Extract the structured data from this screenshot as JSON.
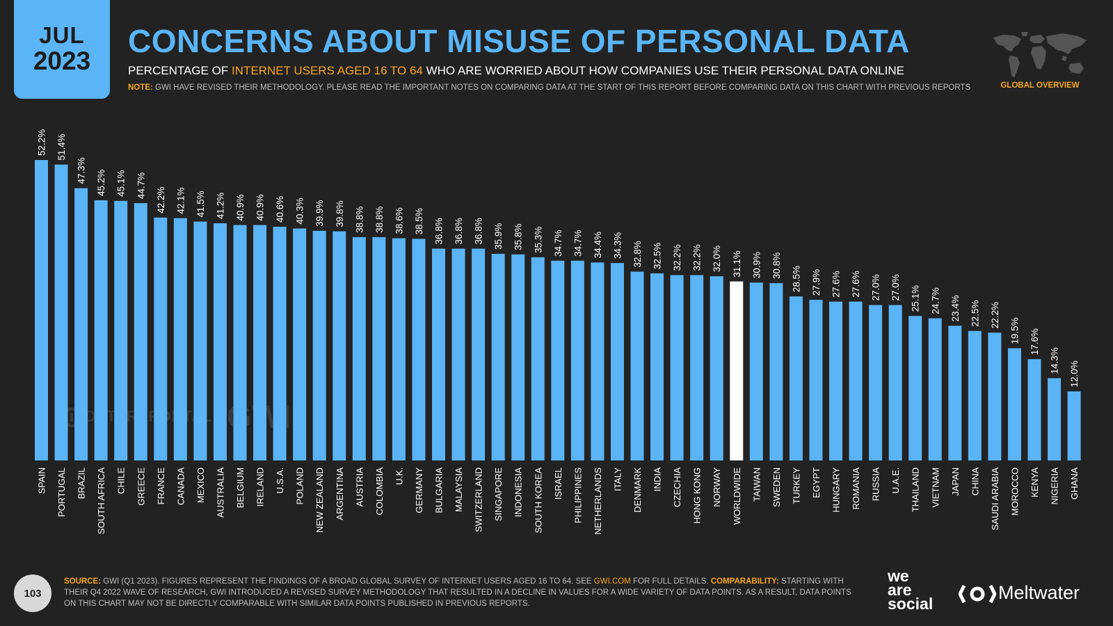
{
  "header": {
    "badge_month": "JUL",
    "badge_year": "2023",
    "title": "CONCERNS ABOUT MISUSE OF PERSONAL DATA",
    "subtitle_pre": "PERCENTAGE OF ",
    "subtitle_highlight": "INTERNET USERS AGED 16 TO 64",
    "subtitle_post": " WHO ARE WORRIED ABOUT HOW COMPANIES USE THEIR PERSONAL DATA ONLINE",
    "note_label": "NOTE:",
    "note_text": " GWI HAVE REVISED THEIR METHODOLOGY. PLEASE READ THE IMPORTANT NOTES ON COMPARING DATA AT THE START OF THIS REPORT BEFORE COMPARING DATA ON THIS CHART WITH PREVIOUS REPORTS",
    "section_label": "GLOBAL OVERVIEW"
  },
  "chart_data": {
    "type": "bar",
    "categories": [
      "SPAIN",
      "PORTUGAL",
      "BRAZIL",
      "SOUTH AFRICA",
      "CHILE",
      "GREECE",
      "FRANCE",
      "CANADA",
      "MEXICO",
      "AUSTRALIA",
      "BELGIUM",
      "IRELAND",
      "U.S.A.",
      "POLAND",
      "NEW ZEALAND",
      "ARGENTINA",
      "AUSTRIA",
      "COLOMBIA",
      "U.K.",
      "GERMANY",
      "BULGARIA",
      "MALAYSIA",
      "SWITZERLAND",
      "SINGAPORE",
      "INDONESIA",
      "SOUTH KOREA",
      "ISRAEL",
      "PHILIPPINES",
      "NETHERLANDS",
      "ITALY",
      "DENMARK",
      "INDIA",
      "CZECHIA",
      "HONG KONG",
      "NORWAY",
      "WORLDWIDE",
      "TAIWAN",
      "SWEDEN",
      "TURKEY",
      "EGYPT",
      "HUNGARY",
      "ROMANIA",
      "RUSSIA",
      "U.A.E.",
      "THAILAND",
      "VIETNAM",
      "JAPAN",
      "CHINA",
      "SAUDI ARABIA",
      "MOROCCO",
      "KENYA",
      "NIGERIA",
      "GHANA"
    ],
    "values": [
      52.2,
      51.4,
      47.3,
      45.2,
      45.1,
      44.7,
      42.2,
      42.1,
      41.5,
      41.2,
      40.9,
      40.9,
      40.6,
      40.3,
      39.9,
      39.8,
      38.8,
      38.8,
      38.6,
      38.5,
      36.8,
      36.8,
      36.8,
      35.9,
      35.8,
      35.3,
      34.7,
      34.7,
      34.4,
      34.3,
      32.8,
      32.5,
      32.2,
      32.2,
      32.0,
      31.1,
      30.9,
      30.8,
      28.5,
      27.9,
      27.6,
      27.6,
      27.0,
      27.0,
      25.1,
      24.7,
      23.4,
      22.5,
      22.2,
      19.5,
      17.6,
      14.3,
      12.0
    ],
    "labels": [
      "52.2%",
      "51.4%",
      "47.3%",
      "45.2%",
      "45.1%",
      "44.7%",
      "42.2%",
      "42.1%",
      "41.5%",
      "41.2%",
      "40.9%",
      "40.9%",
      "40.6%",
      "40.3%",
      "39.9%",
      "39.8%",
      "38.8%",
      "38.8%",
      "38.6%",
      "38.5%",
      "36.8%",
      "36.8%",
      "36.8%",
      "35.9%",
      "35.8%",
      "35.3%",
      "34.7%",
      "34.7%",
      "34.4%",
      "34.3%",
      "32.8%",
      "32.5%",
      "32.2%",
      "32.2%",
      "32.0%",
      "31.1%",
      "30.9%",
      "30.8%",
      "28.5%",
      "27.9%",
      "27.6%",
      "27.6%",
      "27.0%",
      "27.0%",
      "25.1%",
      "24.7%",
      "23.4%",
      "22.5%",
      "22.2%",
      "19.5%",
      "17.6%",
      "14.3%",
      "12.0%"
    ],
    "highlight_category": "WORLDWIDE",
    "ylim": [
      0,
      52.2
    ],
    "grid": false,
    "colors": {
      "bar": "#5ab4f5",
      "highlight": "#ffffff"
    }
  },
  "watermark": {
    "datareportal": "DATAREPORTAL",
    "gwi": "GWI."
  },
  "footer": {
    "page_number": "103",
    "source_label": "SOURCE:",
    "source_text_1": " GWI (Q1 2023). FIGURES REPRESENT THE FINDINGS OF A BROAD GLOBAL SURVEY OF INTERNET USERS AGED 16 TO 64. SEE ",
    "source_link": "GWI.COM",
    "source_text_2": " FOR FULL DETAILS. ",
    "comparability_label": "COMPARABILITY:",
    "comparability_text": " STARTING WITH THEIR Q4 2022 WAVE OF RESEARCH, GWI INTRODUCED A REVISED SURVEY METHODOLOGY THAT RESULTED IN A DECLINE IN VALUES FOR A WIDE VARIETY OF DATA POINTS. AS A RESULT, DATA POINTS ON THIS CHART MAY NOT BE DIRECTLY COMPARABLE WITH SIMILAR DATA POINTS PUBLISHED IN PREVIOUS REPORTS.",
    "logo_line1": "we",
    "logo_line2": "are",
    "logo_line3": "social",
    "partner_logo": "Meltwater"
  },
  "icons": {
    "map": "world-map-icon",
    "meltwater": "meltwater-icon"
  }
}
